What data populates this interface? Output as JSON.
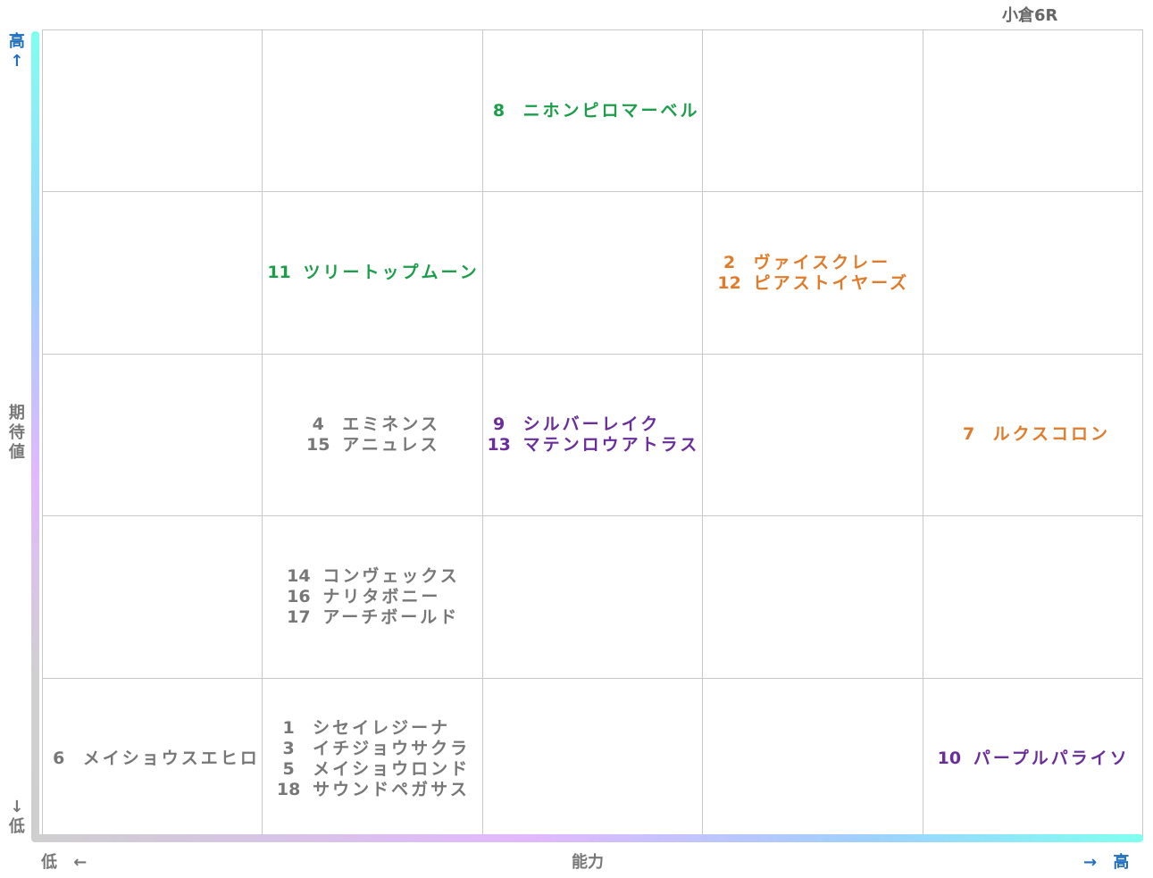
{
  "header": {
    "title": "小倉6R"
  },
  "axes": {
    "y_high": "高↑",
    "y_label": "期待値",
    "y_low": "↓低",
    "x_low": "低 ←",
    "x_label": "能力",
    "x_high": "→ 高"
  },
  "grid": {
    "rows": [
      [
        null,
        null,
        {
          "color": "#1a9e4a",
          "entries": [
            {
              "number": 8,
              "name": "ニホンピロマーベル"
            }
          ]
        },
        null,
        null
      ],
      [
        null,
        {
          "color": "#1a9e4a",
          "entries": [
            {
              "number": 11,
              "name": "ツリートップムーン"
            }
          ]
        },
        null,
        {
          "color": "#e07b2a",
          "entries": [
            {
              "number": 2,
              "name": "ヴァイスクレー"
            },
            {
              "number": 12,
              "name": "ピアストイヤーズ"
            }
          ]
        },
        null
      ],
      [
        null,
        {
          "color": "#777777",
          "entries": [
            {
              "number": 4,
              "name": "エミネンス"
            },
            {
              "number": 15,
              "name": "アニュレス"
            }
          ]
        },
        {
          "color": "#6a2d9a",
          "entries": [
            {
              "number": 9,
              "name": "シルバーレイク"
            },
            {
              "number": 13,
              "name": "マテンロウアトラス"
            }
          ]
        },
        null,
        {
          "color": "#e07b2a",
          "entries": [
            {
              "number": 7,
              "name": "ルクスコロン"
            }
          ]
        }
      ],
      [
        null,
        {
          "color": "#777777",
          "entries": [
            {
              "number": 14,
              "name": "コンヴェックス"
            },
            {
              "number": 16,
              "name": "ナリタボニー"
            },
            {
              "number": 17,
              "name": "アーチボールド"
            }
          ]
        },
        null,
        null,
        null
      ],
      [
        {
          "color": "#777777",
          "entries": [
            {
              "number": 6,
              "name": "メイショウスエヒロ"
            }
          ]
        },
        {
          "color": "#777777",
          "entries": [
            {
              "number": 1,
              "name": "シセイレジーナ"
            },
            {
              "number": 3,
              "name": "イチジョウサクラ"
            },
            {
              "number": 5,
              "name": "メイショウロンド"
            },
            {
              "number": 18,
              "name": "サウンドペガサス"
            }
          ]
        },
        null,
        null,
        {
          "color": "#6a2d9a",
          "entries": [
            {
              "number": 10,
              "name": "パープルパライソ"
            }
          ]
        }
      ]
    ]
  }
}
